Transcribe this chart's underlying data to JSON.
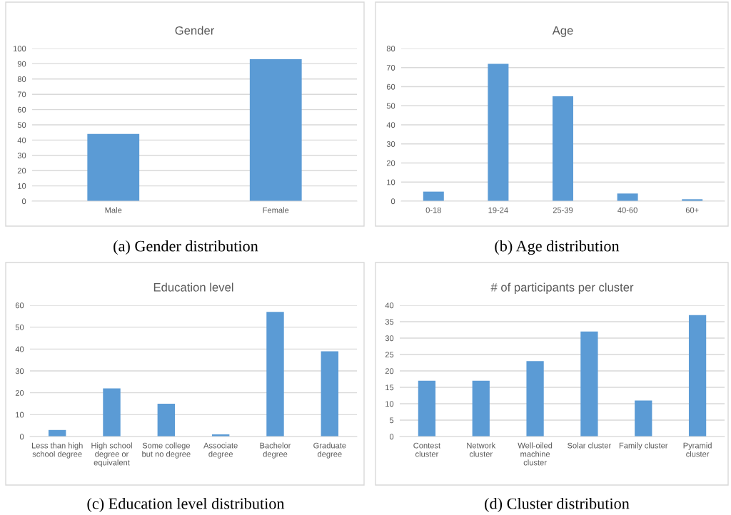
{
  "chart_data": [
    {
      "type": "bar",
      "title": "Gender",
      "categories": [
        "Male",
        "Female"
      ],
      "values": [
        44,
        93
      ],
      "color": "#5b9bd5",
      "ylim": [
        0,
        100
      ],
      "yticks": [
        0,
        10,
        20,
        30,
        40,
        50,
        60,
        70,
        80,
        90,
        100
      ],
      "grid": "y",
      "legend": false,
      "annotations": [
        "(a) Gender distribution"
      ]
    },
    {
      "type": "bar",
      "title": "Age",
      "categories": [
        "0-18",
        "19-24",
        "25-39",
        "40-60",
        "60+"
      ],
      "values": [
        5,
        72,
        55,
        4,
        1
      ],
      "color": "#5b9bd5",
      "ylim": [
        0,
        80
      ],
      "yticks": [
        0,
        10,
        20,
        30,
        40,
        50,
        60,
        70,
        80
      ],
      "grid": "y",
      "legend": false,
      "annotations": [
        "(b) Age distribution"
      ]
    },
    {
      "type": "bar",
      "title": "Education level",
      "categories": [
        "Less than high\nschool degree",
        "High school\ndegree or\nequivalent",
        "Some college\nbut no degree",
        "Associate\ndegree",
        "Bachelor\ndegree",
        "Graduate\ndegree"
      ],
      "values": [
        3,
        22,
        15,
        1,
        57,
        39
      ],
      "color": "#5b9bd5",
      "ylim": [
        0,
        60
      ],
      "yticks": [
        0,
        10,
        20,
        30,
        40,
        50,
        60
      ],
      "grid": "y",
      "legend": false,
      "annotations": [
        "(c) Education level distribution"
      ]
    },
    {
      "type": "bar",
      "title": "# of participants per cluster",
      "categories": [
        "Contest\ncluster",
        "Network\ncluster",
        "Well-oiled\nmachine\ncluster",
        "Solar cluster",
        "Family cluster",
        "Pyramid\ncluster"
      ],
      "values": [
        17,
        17,
        23,
        32,
        11,
        37
      ],
      "color": "#5b9bd5",
      "ylim": [
        0,
        40
      ],
      "yticks": [
        0,
        5,
        10,
        15,
        20,
        25,
        30,
        35,
        40
      ],
      "grid": "y",
      "legend": false,
      "annotations": [
        "(d) Cluster distribution"
      ]
    }
  ]
}
